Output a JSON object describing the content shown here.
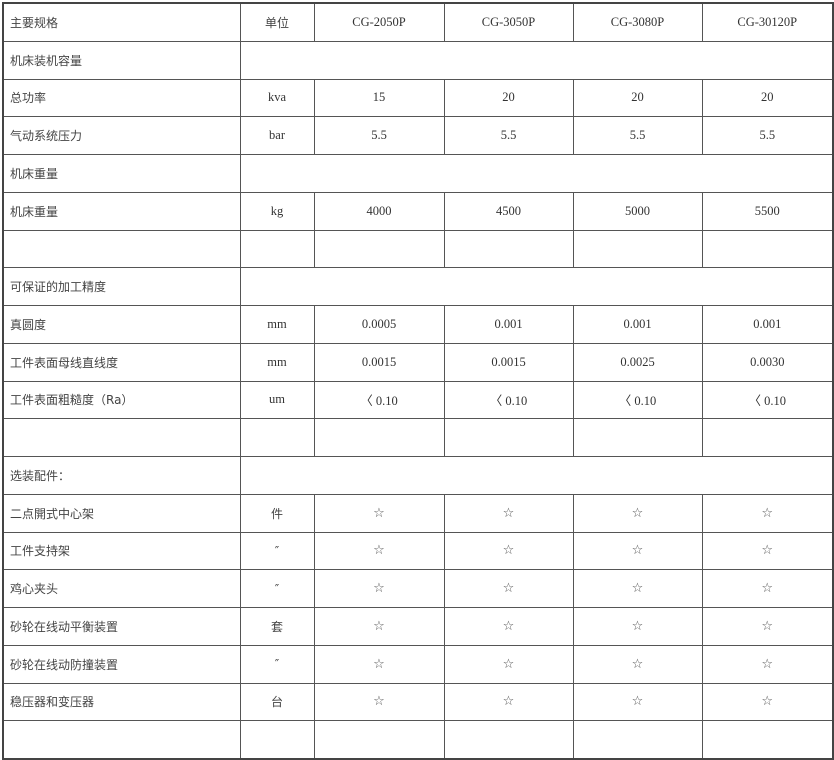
{
  "header": {
    "label": "主要规格",
    "unit": "单位",
    "models": [
      "CG-2050P",
      "CG-3050P",
      "CG-3080P",
      "CG-30120P"
    ]
  },
  "rows": [
    {
      "type": "section",
      "label": "机床装机容量"
    },
    {
      "type": "data",
      "label": "总功率",
      "unit": "kva",
      "values": [
        "15",
        "20",
        "20",
        "20"
      ]
    },
    {
      "type": "data",
      "label": "气动系统压力",
      "unit": "bar",
      "values": [
        "5.5",
        "5.5",
        "5.5",
        "5.5"
      ]
    },
    {
      "type": "section",
      "label": "机床重量"
    },
    {
      "type": "data",
      "label": "机床重量",
      "unit": "kg",
      "values": [
        "4000",
        "4500",
        "5000",
        "5500"
      ]
    },
    {
      "type": "blank"
    },
    {
      "type": "section",
      "label": "可保证的加工精度"
    },
    {
      "type": "data",
      "label": "真圆度",
      "unit": "mm",
      "values": [
        "0.0005",
        "0.001",
        "0.001",
        "0.001"
      ]
    },
    {
      "type": "data",
      "label": "工件表面母线直线度",
      "unit": "mm",
      "values": [
        "0.0015",
        "0.0015",
        "0.0025",
        "0.0030"
      ]
    },
    {
      "type": "data",
      "label": "工件表面粗糙度（Ra）",
      "unit": "um",
      "values": [
        "〈 0.10",
        "〈 0.10",
        "〈 0.10",
        "〈 0.10"
      ]
    },
    {
      "type": "blank"
    },
    {
      "type": "section",
      "label": "选装配件："
    },
    {
      "type": "data",
      "label": "二点開式中心架",
      "unit": "件",
      "values": [
        "☆",
        "☆",
        "☆",
        "☆"
      ]
    },
    {
      "type": "data",
      "label": "工件支持架",
      "unit": "″",
      "values": [
        "☆",
        "☆",
        "☆",
        "☆"
      ]
    },
    {
      "type": "data",
      "label": "鸡心夹头",
      "unit": "″",
      "values": [
        "☆",
        "☆",
        "☆",
        "☆"
      ]
    },
    {
      "type": "data",
      "label": "砂轮在线动平衡装置",
      "unit": "套",
      "values": [
        "☆",
        "☆",
        "☆",
        "☆"
      ]
    },
    {
      "type": "data",
      "label": "砂轮在线动防撞装置",
      "unit": "″",
      "values": [
        "☆",
        "☆",
        "☆",
        "☆"
      ]
    },
    {
      "type": "data",
      "label": "稳压器和变压器",
      "unit": "台",
      "values": [
        "☆",
        "☆",
        "☆",
        "☆"
      ]
    },
    {
      "type": "blank"
    }
  ]
}
